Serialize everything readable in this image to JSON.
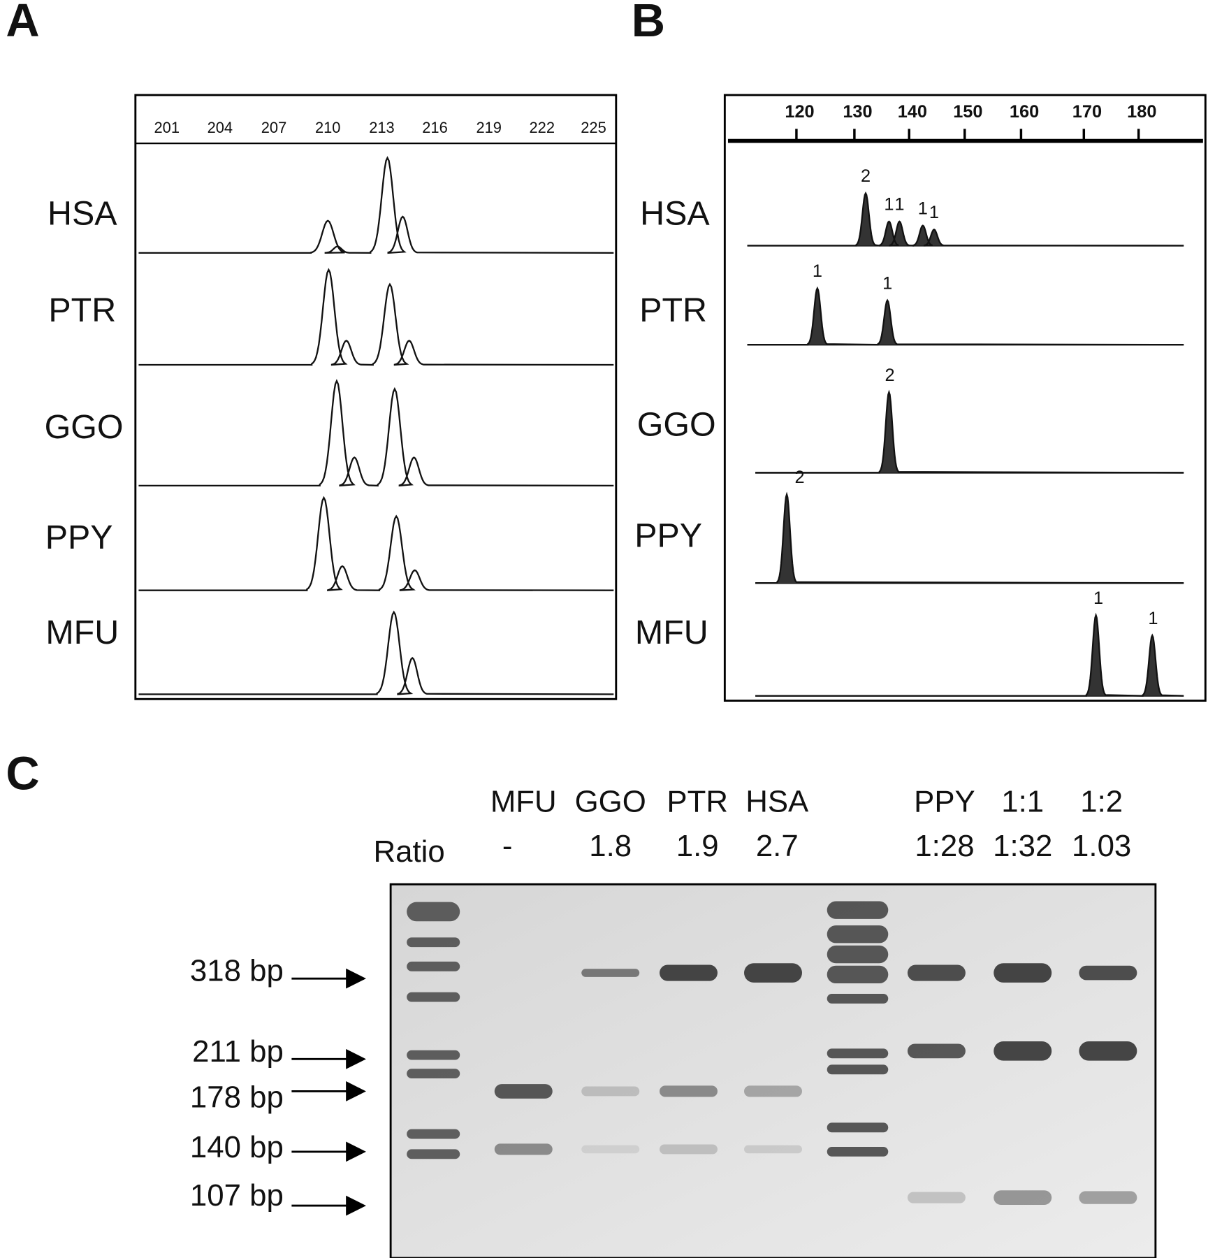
{
  "panels": [
    {
      "label": "A",
      "ticks": [
        "201",
        "204",
        "207",
        "210",
        "213",
        "216",
        "219",
        "222",
        "225"
      ],
      "rows": [
        "HSA",
        "PTR",
        "GGO",
        "PPY",
        "MFU"
      ]
    },
    {
      "label": "B",
      "ticks": [
        "120",
        "130",
        "140",
        "150",
        "160",
        "170",
        "180"
      ],
      "rows": [
        "HSA",
        "PTR",
        "GGO",
        "PPY",
        "MFU"
      ],
      "peak_labels": [
        [
          "2",
          "1",
          "1",
          "1",
          "1"
        ],
        [
          "1",
          "1"
        ],
        [
          "2"
        ],
        [
          "2"
        ],
        [
          "1",
          "1"
        ]
      ]
    },
    {
      "label": "C",
      "lanes": [
        "MFU",
        "GGO",
        "PTR",
        "HSA",
        "PPY",
        "1:1",
        "1:2"
      ],
      "ratio_label": "Ratio",
      "ratios": [
        "-",
        "1.8",
        "1.9",
        "2.7",
        "1:28",
        "1:32",
        "1.03"
      ],
      "sizes": [
        "318 bp",
        "211 bp",
        "178 bp",
        "140 bp",
        "107 bp"
      ]
    }
  ]
}
